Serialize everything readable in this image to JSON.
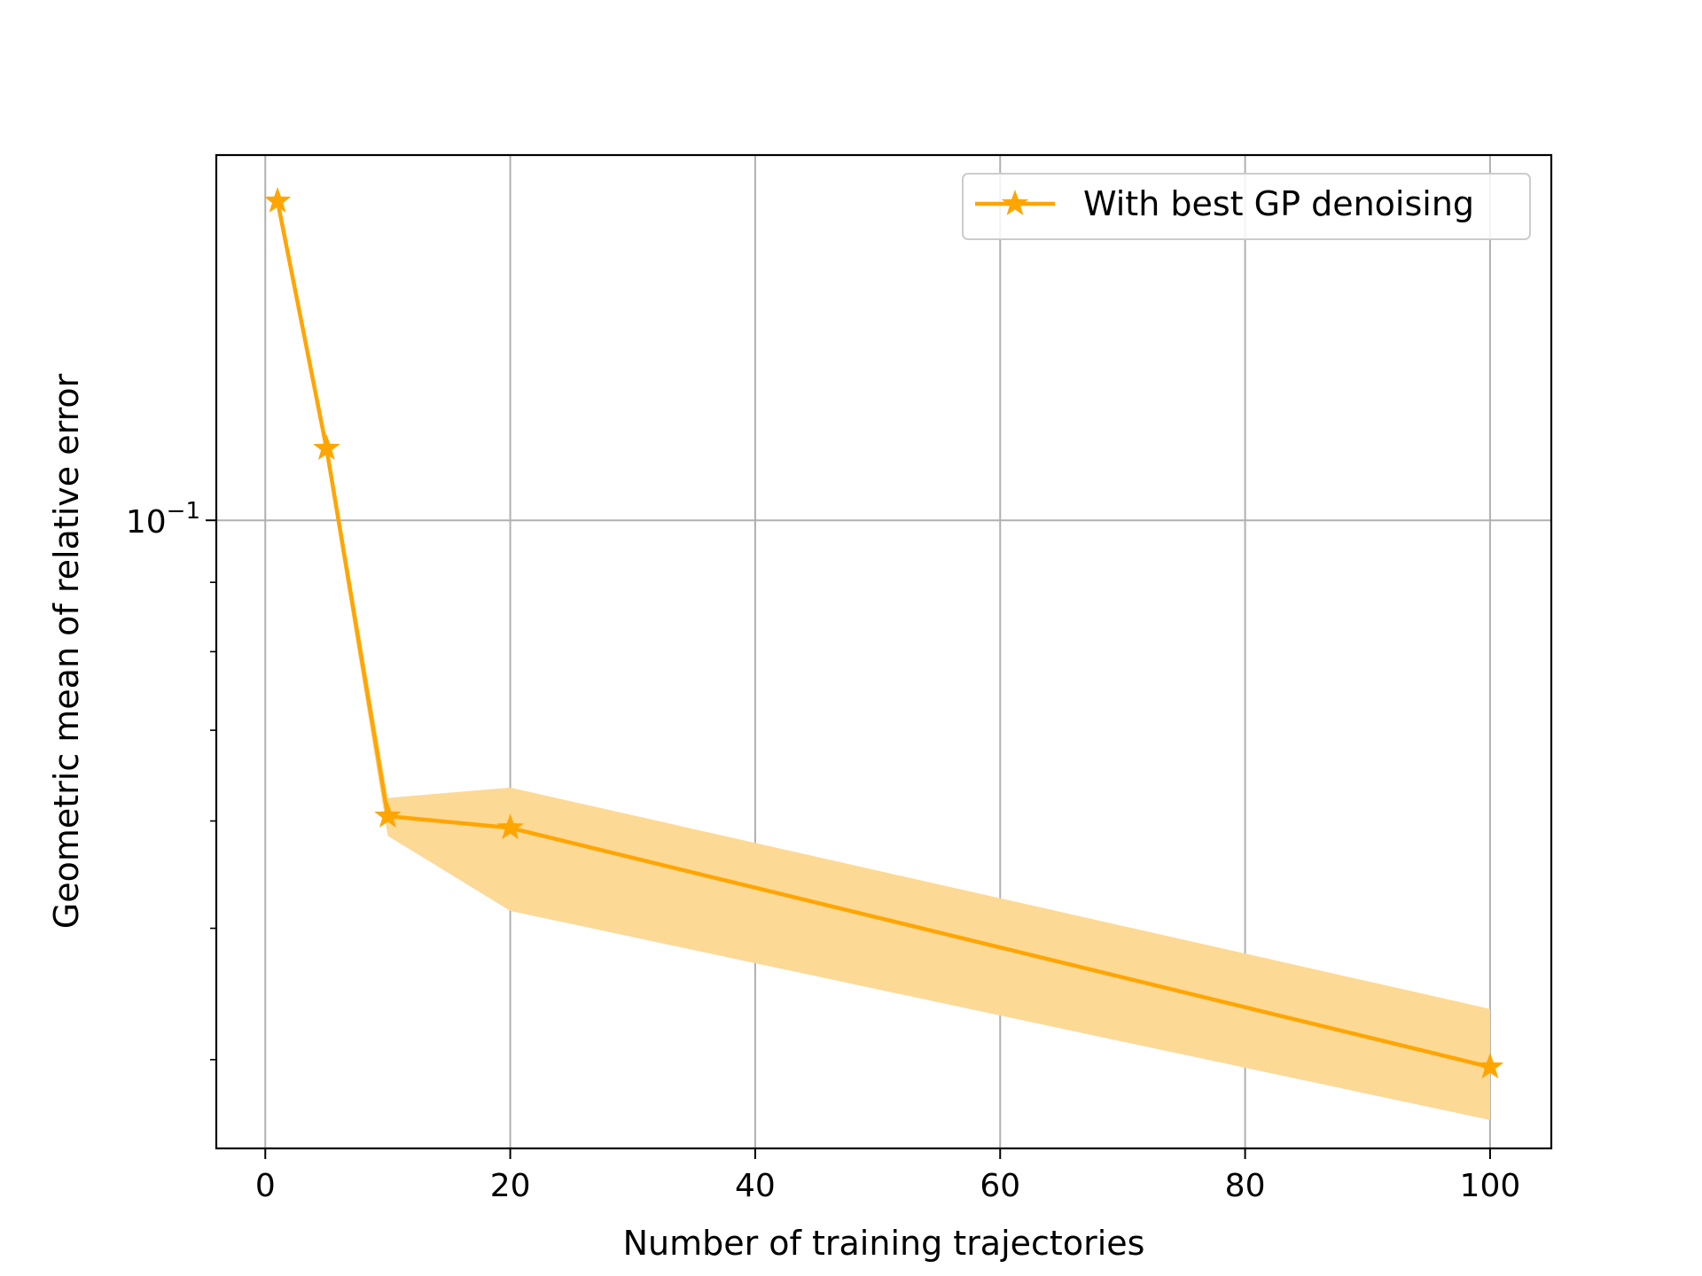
{
  "chart_data": {
    "type": "line",
    "title": "",
    "xlabel": "Number of training trajectories",
    "ylabel": "Geometric mean of relative error",
    "x_scale": "linear",
    "y_scale": "log",
    "xlim": [
      -4.0,
      105.0
    ],
    "ylim": [
      0.0344,
      0.186
    ],
    "x_ticks": [
      0,
      20,
      40,
      60,
      80,
      100
    ],
    "x_tick_labels": [
      "0",
      "20",
      "40",
      "60",
      "80",
      "100"
    ],
    "y_major_ticks": [
      0.1
    ],
    "y_major_tick_labels": [
      "10",
      "−1"
    ],
    "y_minor_ticks": [
      0.04,
      0.05,
      0.06,
      0.07,
      0.08,
      0.09,
      0.2
    ],
    "grid": true,
    "legend_position": "upper right",
    "series": [
      {
        "name": "With best GP denoising",
        "color": "#ffa500",
        "marker": "star",
        "x": [
          1,
          5,
          10,
          20,
          100
        ],
        "y": [
          0.172,
          0.113,
          0.0605,
          0.0593,
          0.0395
        ],
        "band_lower": [
          0.172,
          0.111,
          0.0585,
          0.0515,
          0.0361
        ],
        "band_upper": [
          0.172,
          0.115,
          0.0624,
          0.0635,
          0.0436
        ],
        "band_color": "#fdd996"
      }
    ]
  }
}
